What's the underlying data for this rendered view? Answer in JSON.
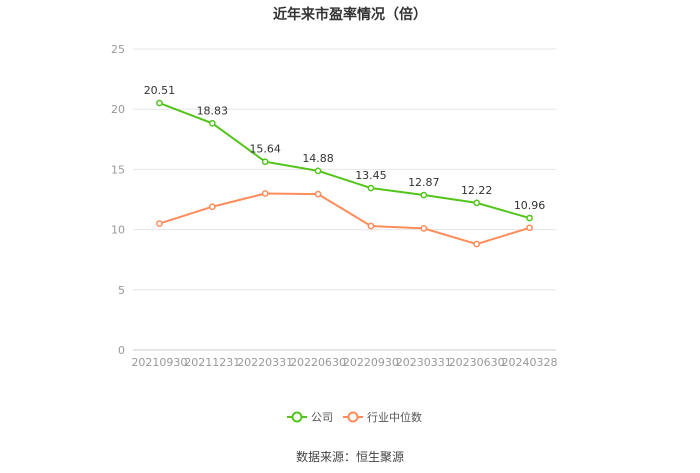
{
  "title": "近年来市盈率情况（倍）",
  "source": "数据来源：恒生聚源",
  "colors": {
    "company": "#52c41a",
    "industry": "#ff8c5a",
    "grid": "#e6e6e6",
    "axis_text": "#999999",
    "label_text": "#333333"
  },
  "chart_data": {
    "type": "line",
    "title": "近年来市盈率情况（倍）",
    "categories": [
      "20210930",
      "20211231",
      "20220331",
      "20220630",
      "20220930",
      "20230331",
      "20230630",
      "20240328"
    ],
    "series": [
      {
        "name": "公司",
        "values": [
          20.51,
          18.83,
          15.64,
          14.88,
          13.45,
          12.87,
          12.22,
          10.96
        ],
        "labels": [
          "20.51",
          "18.83",
          "15.64",
          "14.88",
          "13.45",
          "12.87",
          "12.22",
          "10.96"
        ]
      },
      {
        "name": "行业中位数",
        "values": [
          10.5,
          11.9,
          13.0,
          12.95,
          10.3,
          10.1,
          8.8,
          10.15
        ]
      }
    ],
    "ylim": [
      0,
      25
    ],
    "yticks": [
      "0",
      "5",
      "10",
      "15",
      "20",
      "25"
    ],
    "grid": true,
    "legend": "bottom-center"
  }
}
